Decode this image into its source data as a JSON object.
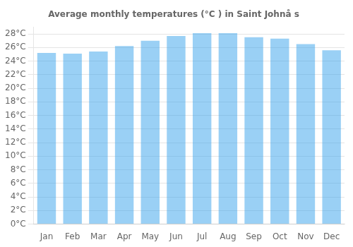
{
  "chart_data": {
    "type": "bar",
    "title": "Average monthly temperatures (°C ) in Saint Johnå s",
    "categories": [
      "Jan",
      "Feb",
      "Mar",
      "Apr",
      "May",
      "Jun",
      "Jul",
      "Aug",
      "Sep",
      "Oct",
      "Nov",
      "Dec"
    ],
    "values": [
      25.2,
      25.1,
      25.4,
      26.2,
      27.0,
      27.7,
      28.1,
      28.1,
      27.5,
      27.3,
      26.5,
      25.6
    ],
    "ylim": [
      0,
      29
    ],
    "yticks": [
      {
        "value": 0,
        "label": "0°C"
      },
      {
        "value": 2,
        "label": "2°C"
      },
      {
        "value": 4,
        "label": "4°C"
      },
      {
        "value": 6,
        "label": "6°C"
      },
      {
        "value": 8,
        "label": "8°C"
      },
      {
        "value": 10,
        "label": "10°C"
      },
      {
        "value": 12,
        "label": "12°C"
      },
      {
        "value": 14,
        "label": "14°C"
      },
      {
        "value": 16,
        "label": "16°C"
      },
      {
        "value": 18,
        "label": "18°C"
      },
      {
        "value": 20,
        "label": "20°C"
      },
      {
        "value": 22,
        "label": "22°C"
      },
      {
        "value": 24,
        "label": "24°C"
      },
      {
        "value": 26,
        "label": "26°C"
      },
      {
        "value": 28,
        "label": "28°C"
      }
    ],
    "grid": true
  }
}
